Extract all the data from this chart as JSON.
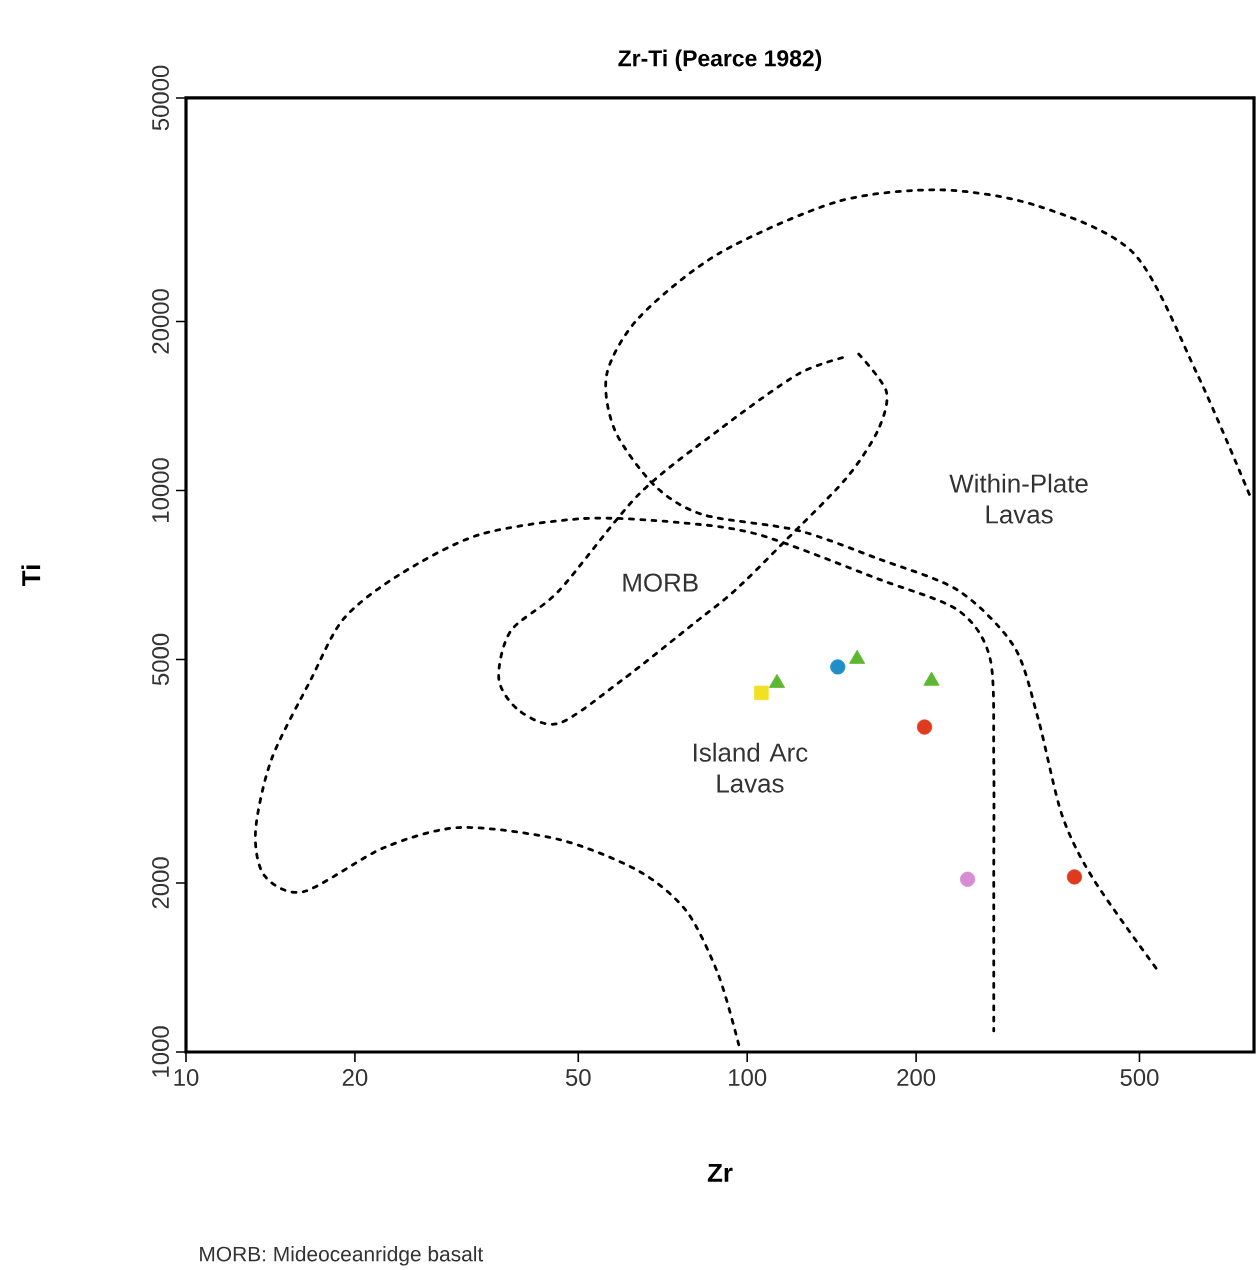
{
  "chart_data": {
    "type": "scatter",
    "title": "Zr-Ti (Pearce 1982)",
    "xlabel": "Zr",
    "ylabel": "Ti",
    "log": "xy",
    "xlim": [
      10,
      800
    ],
    "ylim": [
      1000,
      50000
    ],
    "xticks": [
      10,
      20,
      50,
      100,
      200,
      500
    ],
    "yticks": [
      1000,
      2000,
      5000,
      10000,
      20000,
      50000
    ],
    "series": [
      {
        "type": "line",
        "line_style": "dotted",
        "marker": "none",
        "color": "#000000",
        "x": [
          785,
          634,
          489,
          330,
          222,
          145,
          88.9,
          64.1,
          56.2,
          58.1,
          68.4,
          83.3,
          123,
          171,
          238,
          299,
          330,
          364,
          414,
          538
        ],
        "values": [
          9840,
          16100,
          26400,
          32100,
          34300,
          32700,
          26400,
          20300,
          16100,
          12800,
          10200,
          9060,
          8490,
          7560,
          6630,
          5270,
          3920,
          2640,
          2030,
          1400
        ]
      },
      {
        "type": "line",
        "line_style": "dotted",
        "marker": "none",
        "color": "#000000",
        "x": [
          96.6,
          88.9,
          78,
          64.1,
          46.2,
          30.7,
          22.5,
          16.2,
          13.8,
          13.3,
          14.2,
          16.7,
          19.1,
          24,
          33.3,
          50.9,
          75.5,
          105,
          171,
          238,
          271,
          275,
          275,
          275
        ],
        "values": [
          1030,
          1370,
          1780,
          2100,
          2390,
          2510,
          2310,
          1930,
          2060,
          2470,
          3320,
          4610,
          5910,
          7080,
          8340,
          8910,
          8770,
          8340,
          6960,
          6110,
          5010,
          3320,
          2030,
          1090
        ]
      },
      {
        "type": "line",
        "line_style": "dotted",
        "marker": "none",
        "color": "#000000",
        "x": [
          158,
          177,
          171,
          150,
          116,
          95,
          80.6,
          60.1,
          46.2,
          39.3,
          36.1,
          37.9,
          46.2,
          64.1,
          88.9,
          123,
          150
        ],
        "values": [
          17500,
          15000,
          12800,
          10500,
          8070,
          6630,
          5810,
          4610,
          3850,
          4050,
          4610,
          5620,
          6630,
          9840,
          12800,
          16100,
          17300
        ]
      },
      {
        "type": "scatter",
        "marker": "square",
        "color": "#f2e022",
        "x": [
          106
        ],
        "values": [
          4360
        ]
      },
      {
        "type": "scatter",
        "marker": "triangle",
        "color": "#5cb82e",
        "x": [
          113,
          157,
          213
        ],
        "values": [
          4540,
          5010,
          4580
        ]
      },
      {
        "type": "scatter",
        "marker": "circle",
        "color": "#1e8fc8",
        "x": [
          145
        ],
        "values": [
          4850
        ]
      },
      {
        "type": "scatter",
        "marker": "circle",
        "color": "#e03a1e",
        "x": [
          207,
          383
        ],
        "values": [
          3790,
          2050
        ]
      },
      {
        "type": "scatter",
        "marker": "circle",
        "color": "#d98bd6",
        "x": [
          247
        ],
        "values": [
          2030
        ]
      }
    ],
    "annotations": [
      "MORB",
      "Within-Plate Lavas",
      "Island Arc Lavas",
      "MORB: Mideoceanridge basalt"
    ]
  }
}
